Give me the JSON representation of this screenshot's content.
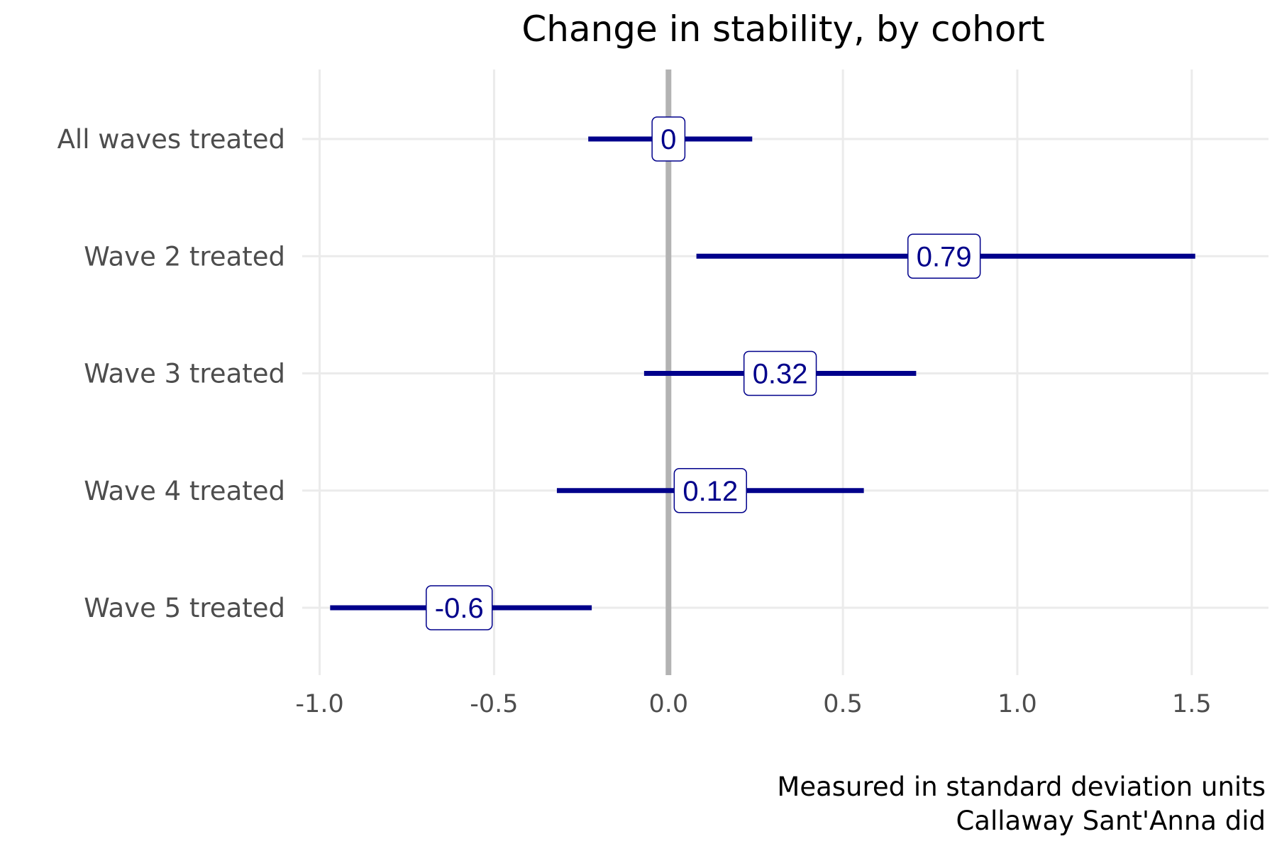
{
  "chart_data": {
    "type": "forest",
    "title": "Change in stability, by cohort",
    "xlabel": "",
    "ylabel": "",
    "caption": [
      "Measured in standard deviation units",
      "Callaway Sant'Anna did"
    ],
    "xlim": [
      -1.05,
      1.72
    ],
    "x_ticks": [
      -1.0,
      -0.5,
      0.0,
      0.5,
      1.0,
      1.5
    ],
    "x_tick_labels": [
      "-1.0",
      "-0.5",
      "0.0",
      "0.5",
      "1.0",
      "1.5"
    ],
    "reference_line": 0.0,
    "grid": true,
    "legend": "none",
    "categories": [
      "All waves treated",
      "Wave 2 treated",
      "Wave 3 treated",
      "Wave 4 treated",
      "Wave 5 treated"
    ],
    "estimates": [
      0.0,
      0.79,
      0.32,
      0.12,
      -0.6
    ],
    "estimate_labels": [
      "0",
      "0.79",
      "0.32",
      "0.12",
      "-0.6"
    ],
    "ci_low": [
      -0.23,
      0.08,
      -0.07,
      -0.32,
      -0.97
    ],
    "ci_high": [
      0.24,
      1.51,
      0.71,
      0.56,
      -0.22
    ],
    "colors": {
      "interval": "#00008B",
      "label_text": "#00008B",
      "label_border": "#00008B",
      "reference_line": "#b3b3b3",
      "grid": "#ebebeb"
    }
  }
}
